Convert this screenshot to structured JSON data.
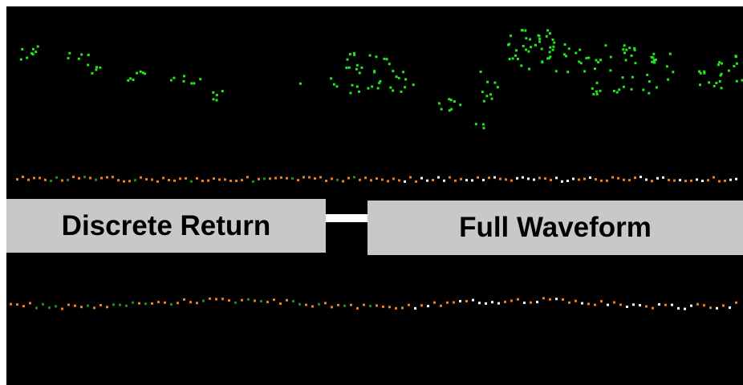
{
  "labels": {
    "discrete": "Discrete Return",
    "waveform": "Full Waveform"
  },
  "colors": {
    "background": "#000000",
    "vegetation": "#22e61e",
    "dark_vegetation": "#1f8f1a",
    "ground": "#f07f1c",
    "other": "#ffffff",
    "label_box": "#c8c8c8"
  }
}
